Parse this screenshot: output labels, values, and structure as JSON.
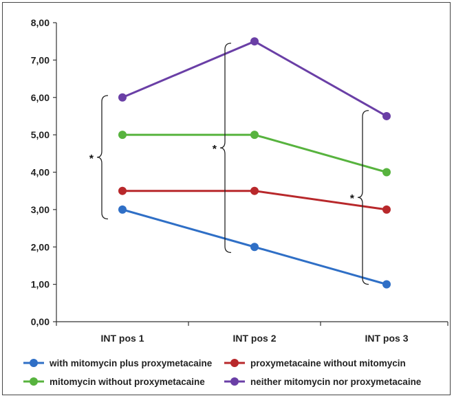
{
  "chart_data": {
    "type": "line",
    "categories": [
      "INT pos 1",
      "INT pos 2",
      "INT pos 3"
    ],
    "ylim": [
      0,
      8
    ],
    "yticks": [
      "0,00",
      "1,00",
      "2,00",
      "3,00",
      "4,00",
      "5,00",
      "6,00",
      "7,00",
      "8,00"
    ],
    "series": [
      {
        "name": "with mitomycin plus proxymetacaine",
        "color": "#2f6fc6",
        "values": [
          3.0,
          2.0,
          1.0
        ]
      },
      {
        "name": "proxymetacaine without mitomycin",
        "color": "#b8282b",
        "values": [
          3.5,
          3.5,
          3.0
        ]
      },
      {
        "name": "mitomycin without proxymetacaine",
        "color": "#57b33e",
        "values": [
          5.0,
          5.0,
          4.0
        ]
      },
      {
        "name": "neither mitomycin nor proxymetacaine",
        "color": "#6a3fa6",
        "values": [
          6.0,
          7.5,
          5.5
        ]
      }
    ],
    "annotations": [
      {
        "text": "*",
        "category": "INT pos 1",
        "range": [
          2.75,
          6.05
        ]
      },
      {
        "text": "*",
        "category": "INT pos 2",
        "range": [
          1.85,
          7.45
        ]
      },
      {
        "text": "*",
        "category": "INT pos 3",
        "range": [
          1.0,
          5.65
        ]
      }
    ],
    "grid": false,
    "legend_position": "bottom"
  }
}
